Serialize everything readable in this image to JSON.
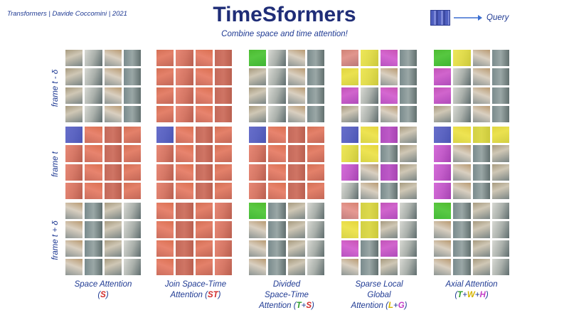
{
  "header": {
    "credit": "Transformers | Davide Coccomini | 2021",
    "title": "TimeSformers",
    "subtitle": "Combine space and time attention!",
    "legend_label": "Query"
  },
  "row_labels": [
    "frame t - δ",
    "frame t",
    "frame t + δ"
  ],
  "columns": [
    {
      "caption_lines": [
        "Space Attention"
      ],
      "formula": [
        {
          "t": "(",
          "c": ""
        },
        {
          "t": "S",
          "c": "red"
        },
        {
          "t": ")",
          "c": ""
        }
      ]
    },
    {
      "caption_lines": [
        "Join Space-Time",
        "Attention"
      ],
      "formula": [
        {
          "t": "(",
          "c": ""
        },
        {
          "t": "ST",
          "c": "red"
        },
        {
          "t": ")",
          "c": ""
        }
      ],
      "formula_inline": true
    },
    {
      "caption_lines": [
        "Divided",
        "Space-Time",
        "Attention"
      ],
      "formula": [
        {
          "t": "(",
          "c": ""
        },
        {
          "t": "T",
          "c": "green"
        },
        {
          "t": "+",
          "c": ""
        },
        {
          "t": "S",
          "c": "red"
        },
        {
          "t": ")",
          "c": ""
        }
      ],
      "formula_inline": true
    },
    {
      "caption_lines": [
        "Sparse Local",
        "Global",
        "Attention"
      ],
      "formula": [
        {
          "t": "(",
          "c": ""
        },
        {
          "t": "L",
          "c": "yellow"
        },
        {
          "t": "+",
          "c": ""
        },
        {
          "t": "G",
          "c": "purple"
        },
        {
          "t": ")",
          "c": ""
        }
      ],
      "formula_inline": true
    },
    {
      "caption_lines": [
        "Axial Attention"
      ],
      "formula": [
        {
          "t": "(",
          "c": ""
        },
        {
          "t": "T",
          "c": "green"
        },
        {
          "t": "+",
          "c": ""
        },
        {
          "t": "W",
          "c": "yellow"
        },
        {
          "t": "+",
          "c": ""
        },
        {
          "t": "H",
          "c": "purple"
        },
        {
          "t": ")",
          "c": ""
        }
      ]
    }
  ],
  "colors": {
    "query": "#4650c8",
    "space_time": "#f0553c",
    "time": "#28c814",
    "local_width": "#f5eb28",
    "global_height": "#d228dc"
  },
  "masks": [
    [
      [
        "....",
        "....",
        "....",
        "...."
      ],
      [
        "qrrr",
        "rrrr",
        "rrrr",
        "rrrr"
      ],
      [
        "....",
        "....",
        "....",
        "...."
      ]
    ],
    [
      [
        "rrrr",
        "rrrr",
        "rrrr",
        "rrrr"
      ],
      [
        "qrrr",
        "rrrr",
        "rrrr",
        "rrrr"
      ],
      [
        "rrrr",
        "rrrr",
        "rrrr",
        "rrrr"
      ]
    ],
    [
      [
        "g...",
        "....",
        "....",
        "...."
      ],
      [
        "qrrr",
        "rrrr",
        "rrrr",
        "rrrr"
      ],
      [
        "g...",
        "....",
        "....",
        "...."
      ]
    ],
    [
      [
        "lym.",
        "yy..",
        "m.m.",
        "...."
      ],
      [
        "qym.",
        "yy..",
        "m.m.",
        "...."
      ],
      [
        "lym.",
        "yy..",
        "m.m.",
        "...."
      ]
    ],
    [
      [
        "gy..",
        "m...",
        "m...",
        "...."
      ],
      [
        "qyyy",
        "m...",
        "m...",
        "m..."
      ],
      [
        "g...",
        "....",
        "....",
        "...."
      ]
    ]
  ]
}
